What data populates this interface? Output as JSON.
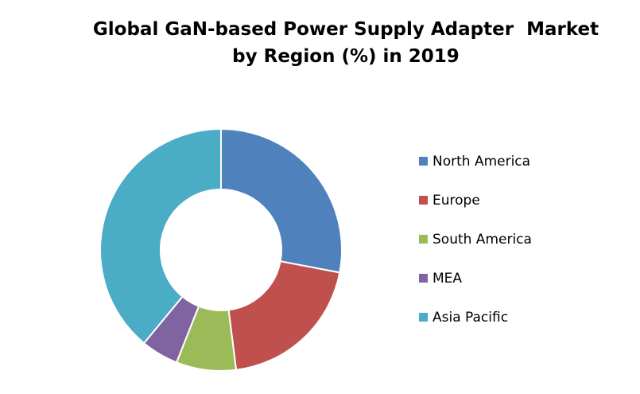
{
  "chart_data": {
    "type": "pie",
    "title_lines": [
      "Global GaN-based Power Supply Adapter  Market",
      "by Region (%) in 2019"
    ],
    "categories": [
      "North America",
      "Europe",
      "South America",
      "MEA",
      "Asia Pacific"
    ],
    "values": [
      28,
      20,
      8,
      5,
      39
    ],
    "unit": "%",
    "colors": [
      "#4F81BD",
      "#C0504D",
      "#9BBB59",
      "#8064A2",
      "#4BACC6"
    ],
    "donut": true,
    "legend_position": "right"
  }
}
